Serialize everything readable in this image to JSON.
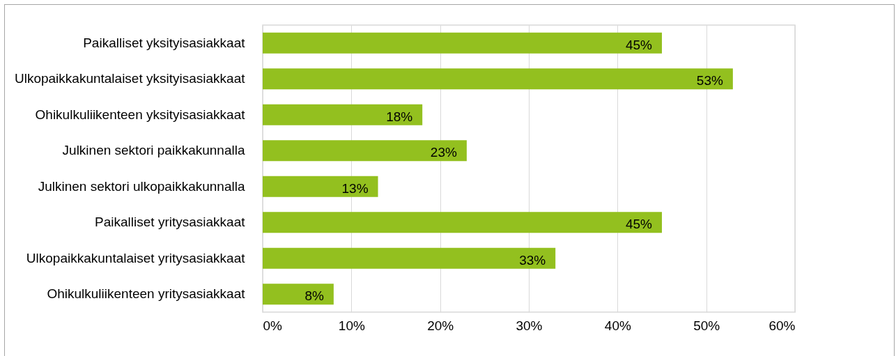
{
  "chart_data": {
    "type": "bar",
    "orientation": "horizontal",
    "categories": [
      "Paikalliset yksityisasiakkaat",
      "Ulkopaikkakuntalaiset yksityisasiakkaat",
      "Ohikulkuliikenteen yksityisasiakkaat",
      "Julkinen sektori paikkakunnalla",
      "Julkinen sektori ulkopaikkakunnalla",
      "Paikalliset yritysasiakkaat",
      "Ulkopaikkakuntalaiset yritysasiakkaat",
      "Ohikulkuliikenteen yritysasiakkaat"
    ],
    "values": [
      45,
      53,
      18,
      23,
      13,
      45,
      33,
      8
    ],
    "value_labels": [
      "45%",
      "53%",
      "18%",
      "23%",
      "13%",
      "45%",
      "33%",
      "8%"
    ],
    "color": "#93c01f",
    "xlim": [
      0,
      60
    ],
    "xticks": [
      {
        "value": 0,
        "label": "0%"
      },
      {
        "value": 10,
        "label": "10%"
      },
      {
        "value": 20,
        "label": "20%"
      },
      {
        "value": 30,
        "label": "30%"
      },
      {
        "value": 40,
        "label": "40%"
      },
      {
        "value": 50,
        "label": "50%"
      },
      {
        "value": 60,
        "label": "60%"
      }
    ],
    "grid": "x"
  }
}
